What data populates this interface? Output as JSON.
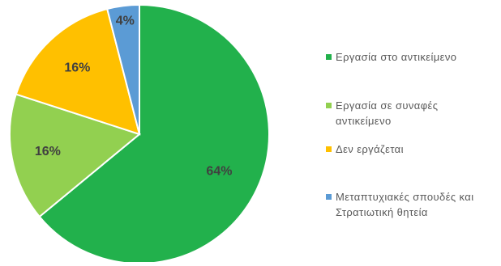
{
  "chart_data": {
    "type": "pie",
    "title": "",
    "slices": [
      {
        "label": "Εργασία στο αντικείμενο",
        "value": 64,
        "display": "64%",
        "color": "#22B14C"
      },
      {
        "label": "Εργασία σε συναφές αντικείμενο",
        "value": 16,
        "display": "16%",
        "color": "#92D050"
      },
      {
        "label": "Δεν εργάζεται",
        "value": 16,
        "display": "16%",
        "color": "#FFC000"
      },
      {
        "label": "Μεταπτυχιακές σπουδές και Στρατιωτική θητεία",
        "value": 4,
        "display": "4%",
        "color": "#5B9BD5"
      }
    ],
    "start_angle": "12 o'clock",
    "direction": "clockwise",
    "legend_position": "right"
  }
}
